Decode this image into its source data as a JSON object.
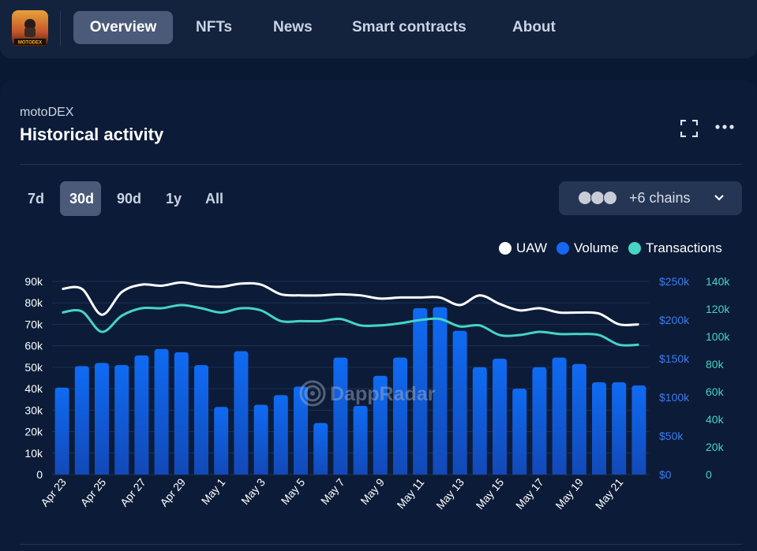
{
  "nav": {
    "logo_text": "MOTODEX",
    "tabs": [
      {
        "label": "Overview",
        "active": true
      },
      {
        "label": "NFTs",
        "active": false
      },
      {
        "label": "News",
        "active": false
      },
      {
        "label": "Smart contracts",
        "active": false
      },
      {
        "label": "About",
        "active": false
      }
    ]
  },
  "card": {
    "subtitle": "motoDEX",
    "title": "Historical activity",
    "expand_icon": "fullscreen-icon",
    "more_icon": "more-horizontal-icon"
  },
  "ranges": [
    {
      "label": "7d",
      "active": false
    },
    {
      "label": "30d",
      "active": true
    },
    {
      "label": "90d",
      "active": false
    },
    {
      "label": "1y",
      "active": false
    },
    {
      "label": "All",
      "active": false
    }
  ],
  "chains": {
    "label": "+6 chains",
    "icons": [
      "chain-icon-1",
      "chain-icon-2",
      "chain-icon-3"
    ],
    "dropdown_icon": "chevron-down-icon"
  },
  "watermark": "DappRadar",
  "colors": {
    "uaw": "#ffffff",
    "volume": "#1767f0",
    "transactions": "#46d4c4",
    "left_axis": "#ffffff",
    "volume_axis": "#3d7cf0",
    "transactions_axis": "#46d4c4"
  },
  "chart_data": {
    "type": "bar",
    "legend": [
      "UAW",
      "Volume",
      "Transactions"
    ],
    "legend_position": "top-right",
    "categories": [
      "Apr 23",
      "Apr 24",
      "Apr 25",
      "Apr 26",
      "Apr 27",
      "Apr 28",
      "Apr 29",
      "Apr 30",
      "May 1",
      "May 2",
      "May 3",
      "May 4",
      "May 5",
      "May 6",
      "May 7",
      "May 8",
      "May 9",
      "May 10",
      "May 11",
      "May 12",
      "May 13",
      "May 14",
      "May 15",
      "May 16",
      "May 17",
      "May 18",
      "May 19",
      "May 20",
      "May 21",
      "May 22"
    ],
    "x_tick_labels": [
      "Apr 23",
      "Apr 25",
      "Apr 27",
      "Apr 29",
      "May 1",
      "May 3",
      "May 5",
      "May 7",
      "May 9",
      "May 11",
      "May 13",
      "May 15",
      "May 17",
      "May 19",
      "May 21"
    ],
    "axes": {
      "left": {
        "ticks": [
          "0",
          "10k",
          "20k",
          "30k",
          "40k",
          "50k",
          "60k",
          "70k",
          "80k",
          "90k"
        ],
        "range": [
          0,
          90000
        ]
      },
      "volume": {
        "ticks": [
          "$0",
          "$50k",
          "$100k",
          "$150k",
          "$200k",
          "$250k"
        ],
        "range": [
          0,
          250000
        ]
      },
      "transactions": {
        "ticks": [
          "0",
          "20k",
          "40k",
          "60k",
          "80k",
          "100k",
          "120k",
          "140k"
        ],
        "range": [
          0,
          140000
        ]
      }
    },
    "series": [
      {
        "name": "Volume",
        "type": "bar",
        "axis": "left",
        "values": [
          40500,
          50500,
          52000,
          51000,
          55500,
          58500,
          57000,
          51000,
          31500,
          57500,
          32500,
          37000,
          41000,
          24000,
          54500,
          32000,
          46000,
          54500,
          77500,
          78000,
          67000,
          50000,
          54000,
          40000,
          50000,
          54500,
          51500,
          43000,
          43000,
          41500
        ]
      },
      {
        "name": "UAW",
        "type": "line",
        "axis": "left",
        "values": [
          86500,
          86500,
          74500,
          85000,
          88500,
          88000,
          89500,
          88000,
          87500,
          89000,
          88500,
          84000,
          83500,
          83500,
          84000,
          83500,
          82000,
          82500,
          82500,
          82500,
          79000,
          83500,
          79500,
          76500,
          77500,
          75500,
          75500,
          75000,
          70000,
          70000
        ]
      },
      {
        "name": "Transactions",
        "type": "line",
        "axis": "left",
        "values": [
          75500,
          76000,
          66500,
          74000,
          77500,
          77500,
          79000,
          77500,
          75500,
          77500,
          76500,
          71500,
          71500,
          71500,
          72500,
          69500,
          69500,
          70500,
          72000,
          72500,
          69000,
          69500,
          65000,
          65000,
          66500,
          65500,
          65500,
          65000,
          60500,
          60500
        ]
      }
    ]
  }
}
